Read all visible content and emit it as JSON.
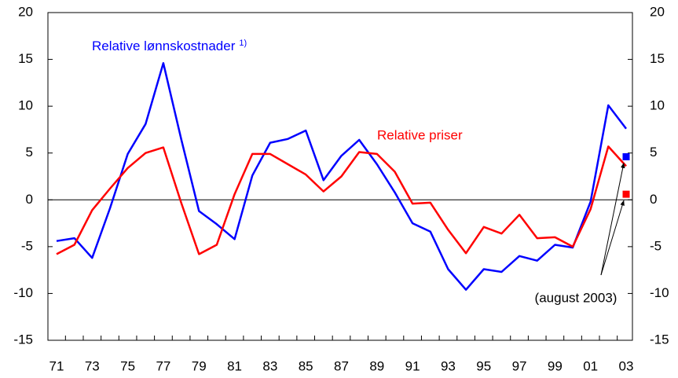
{
  "chart_data": {
    "type": "line",
    "categories": [
      "71",
      null,
      "73",
      null,
      "75",
      null,
      "77",
      null,
      "79",
      null,
      "81",
      null,
      "83",
      null,
      "85",
      null,
      "87",
      null,
      "89",
      null,
      "91",
      null,
      "93",
      null,
      "95",
      null,
      "97",
      null,
      "99",
      null,
      "01",
      null,
      "03"
    ],
    "series": [
      {
        "name": "Relative lønnskostnader",
        "note_mark": "1)",
        "color": "#0000ff",
        "values": [
          -4.4,
          -4.1,
          -6.2,
          -0.9,
          4.9,
          8.1,
          14.6,
          6.5,
          -1.2,
          -2.6,
          -4.2,
          2.6,
          6.1,
          6.5,
          7.4,
          2.1,
          4.7,
          6.4,
          3.8,
          0.8,
          -2.5,
          -3.4,
          -7.4,
          -9.6,
          -7.4,
          -7.7,
          -6.0,
          -6.5,
          -4.8,
          -5.1,
          -0.2,
          10.1,
          7.6
        ],
        "point": 4.6
      },
      {
        "name": "Relative priser",
        "color": "#ff0000",
        "values": [
          -5.8,
          -4.8,
          -1.1,
          1.2,
          3.4,
          5.0,
          5.6,
          -0.3,
          -5.8,
          -4.8,
          0.6,
          4.9,
          4.9,
          3.8,
          2.7,
          0.9,
          2.5,
          5.1,
          4.9,
          3.0,
          -0.4,
          -0.3,
          -3.2,
          -5.7,
          -2.9,
          -3.6,
          -1.6,
          -4.1,
          -4.0,
          -5.0,
          -1.0,
          5.7,
          3.6
        ],
        "point": 0.6
      }
    ],
    "point_label": "(august 2003)",
    "ylim": [
      -15,
      20
    ],
    "yticks": [
      -15,
      -10,
      -5,
      0,
      5,
      10,
      15,
      20
    ],
    "y2lim": [
      -15,
      20
    ],
    "y2ticks": [
      -15,
      -10,
      -5,
      0,
      5,
      10,
      15,
      20
    ]
  }
}
